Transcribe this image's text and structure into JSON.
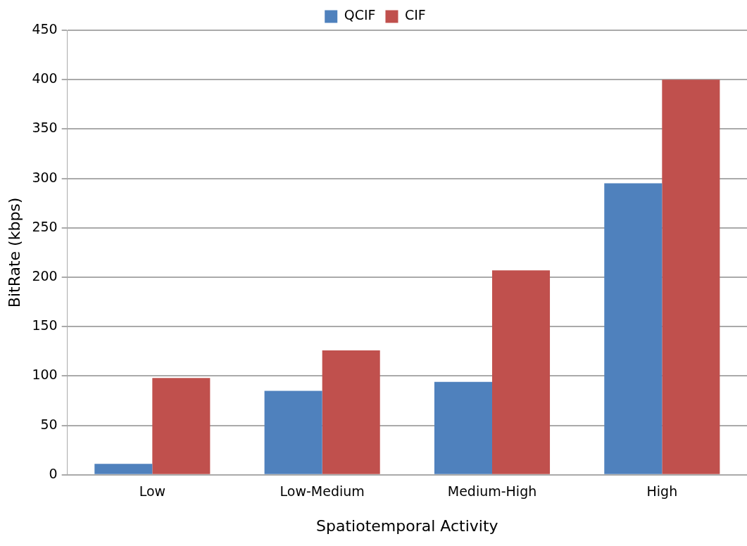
{
  "chart_data": {
    "type": "bar",
    "xlabel": "Spatiotemporal Activity",
    "ylabel": "BitRate (kbps)",
    "categories": [
      "Low",
      "Low-Medium",
      "Medium-High",
      "High"
    ],
    "series": [
      {
        "name": "QCIF",
        "color": "#4f81bd",
        "values": [
          11,
          85,
          94,
          295
        ]
      },
      {
        "name": "CIF",
        "color": "#c0504d",
        "values": [
          98,
          126,
          207,
          400
        ]
      }
    ],
    "ylim": [
      0,
      450
    ],
    "yticks": [
      0,
      50,
      100,
      150,
      200,
      250,
      300,
      350,
      400,
      450
    ],
    "grid": "y",
    "legend": "top"
  }
}
